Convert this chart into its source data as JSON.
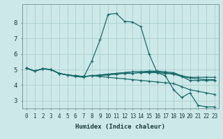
{
  "title": "",
  "xlabel": "Humidex (Indice chaleur)",
  "ylabel": "",
  "xlim": [
    -0.5,
    23.5
  ],
  "ylim": [
    2.5,
    9.2
  ],
  "xtick_vals": [
    0,
    1,
    2,
    3,
    4,
    5,
    6,
    7,
    8,
    9,
    10,
    11,
    12,
    13,
    14,
    15,
    16,
    17,
    18,
    19,
    20,
    21,
    22,
    23
  ],
  "xtick_labels": [
    "0",
    "1",
    "2",
    "3",
    "4",
    "5",
    "6",
    "7",
    "8",
    "9",
    "10",
    "11",
    "12",
    "13",
    "14",
    "15",
    "16",
    "17",
    "18",
    "19",
    "20",
    "21",
    "22",
    "23"
  ],
  "ytick_vals": [
    3,
    4,
    5,
    6,
    7,
    8
  ],
  "ytick_labels": [
    "3",
    "4",
    "5",
    "6",
    "7",
    "8"
  ],
  "background_color": "#cde8e8",
  "grid_color": "#aacfcf",
  "line_color": "#1a6b6b",
  "lines": [
    {
      "x": [
        0,
        1,
        2,
        3,
        4,
        5,
        6,
        7,
        8,
        9,
        10,
        11,
        12,
        13,
        14,
        15,
        16,
        17,
        18,
        19,
        20,
        21,
        22,
        23
      ],
      "y": [
        5.1,
        4.9,
        5.05,
        5.0,
        4.75,
        4.65,
        4.55,
        4.5,
        5.55,
        6.9,
        8.55,
        8.6,
        8.1,
        8.05,
        7.75,
        6.0,
        4.8,
        4.6,
        3.7,
        3.2,
        3.5,
        2.7,
        2.6,
        2.6
      ]
    },
    {
      "x": [
        0,
        1,
        2,
        3,
        4,
        5,
        6,
        7,
        8,
        9,
        10,
        11,
        12,
        13,
        14,
        15,
        16,
        17,
        18,
        19,
        20,
        21,
        22,
        23
      ],
      "y": [
        5.1,
        4.9,
        5.05,
        5.0,
        4.75,
        4.65,
        4.6,
        4.55,
        4.6,
        4.65,
        4.7,
        4.75,
        4.8,
        4.85,
        4.85,
        4.9,
        4.9,
        4.85,
        4.8,
        4.6,
        4.5,
        4.5,
        4.5,
        4.5
      ]
    },
    {
      "x": [
        0,
        1,
        2,
        3,
        4,
        5,
        6,
        7,
        8,
        9,
        10,
        11,
        12,
        13,
        14,
        15,
        16,
        17,
        18,
        19,
        20,
        21,
        22,
        23
      ],
      "y": [
        5.1,
        4.9,
        5.05,
        5.0,
        4.75,
        4.65,
        4.6,
        4.55,
        4.6,
        4.65,
        4.7,
        4.75,
        4.8,
        4.85,
        4.85,
        4.85,
        4.85,
        4.8,
        4.75,
        4.55,
        4.3,
        4.3,
        4.3,
        4.3
      ]
    },
    {
      "x": [
        0,
        1,
        2,
        3,
        4,
        5,
        6,
        7,
        8,
        9,
        10,
        11,
        12,
        13,
        14,
        15,
        16,
        17,
        18,
        19,
        20,
        21,
        22,
        23
      ],
      "y": [
        5.1,
        4.9,
        5.05,
        5.0,
        4.75,
        4.65,
        4.6,
        4.55,
        4.6,
        4.55,
        4.5,
        4.45,
        4.4,
        4.35,
        4.3,
        4.25,
        4.2,
        4.15,
        4.1,
        3.9,
        3.7,
        3.6,
        3.5,
        3.4
      ]
    },
    {
      "x": [
        0,
        1,
        2,
        3,
        4,
        5,
        6,
        7,
        8,
        9,
        10,
        11,
        12,
        13,
        14,
        15,
        16,
        17,
        18,
        19,
        20,
        21,
        22,
        23
      ],
      "y": [
        5.1,
        4.9,
        5.05,
        5.0,
        4.75,
        4.65,
        4.6,
        4.55,
        4.6,
        4.6,
        4.65,
        4.7,
        4.75,
        4.75,
        4.8,
        4.8,
        4.8,
        4.75,
        4.7,
        4.55,
        4.45,
        4.4,
        4.35,
        4.35
      ]
    }
  ]
}
